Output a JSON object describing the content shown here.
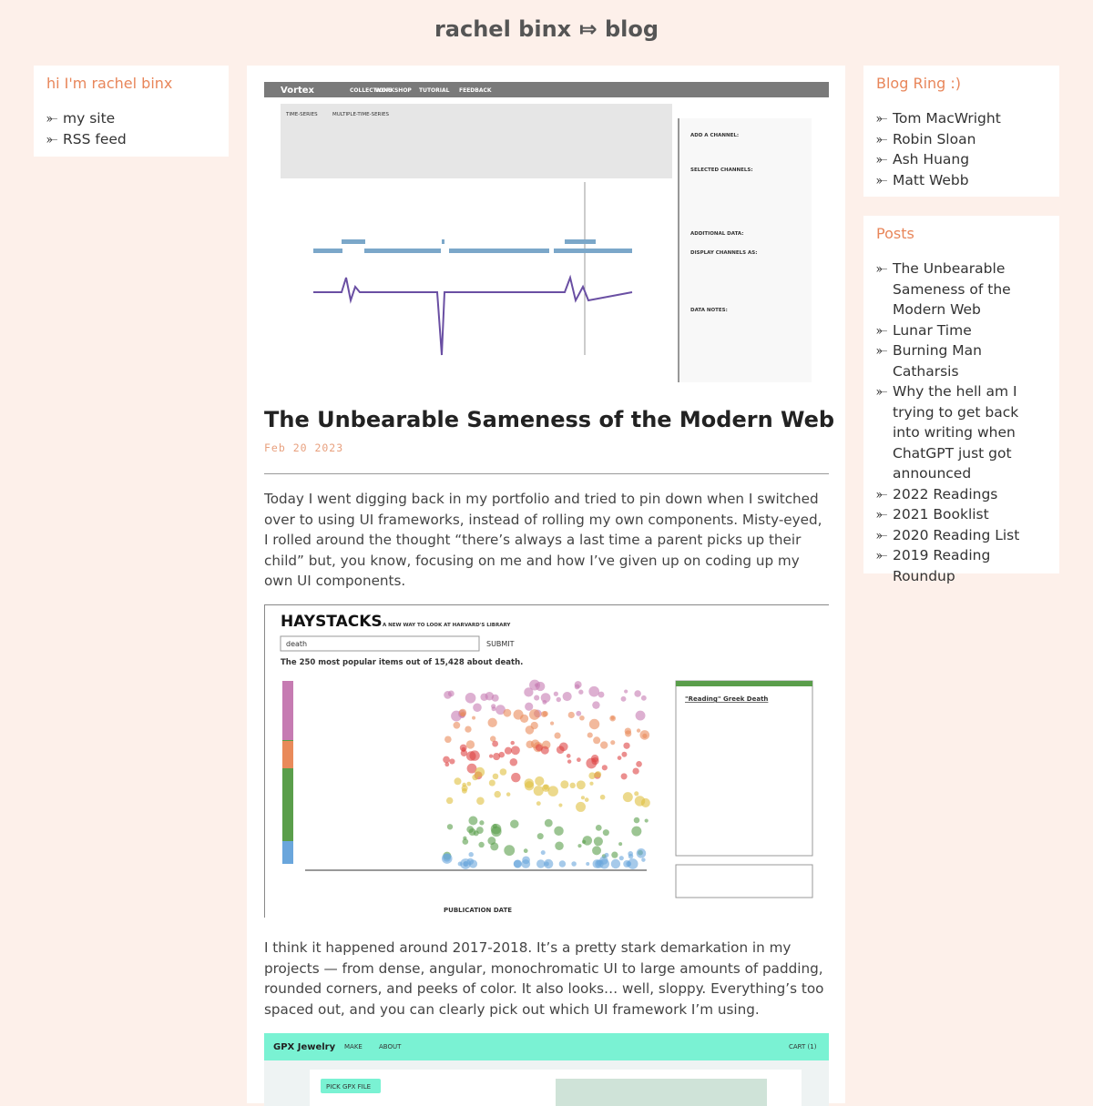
{
  "header": {
    "title": "rachel binx ⤇ blog"
  },
  "bullet": "⤜",
  "sidebar_left": {
    "title": "hi I'm rachel binx",
    "links": [
      "my site",
      "RSS feed"
    ]
  },
  "blog_ring": {
    "title": "Blog Ring :)",
    "links": [
      "Tom MacWright",
      "Robin Sloan",
      "Ash Huang",
      "Matt Webb"
    ]
  },
  "posts": {
    "title": "Posts",
    "links": [
      "The Unbearable Sameness of the Modern Web",
      "Lunar Time",
      "Burning Man Catharsis",
      "Why the hell am I trying to get back into writing when ChatGPT just got announced",
      "2022 Readings",
      "2021 Booklist",
      "2020 Reading List",
      "2019 Reading Roundup"
    ]
  },
  "article": {
    "title": "The Unbearable Sameness of the Modern Web",
    "date": "Feb 20 2023",
    "paragraphs": [
      "Today I went digging back in my portfolio and tried to pin down when I switched over to using UI frameworks, instead of rolling my own components. Misty-eyed, I rolled around the thought “there’s always a last time a parent picks up their child” but, you know, focusing on me and how I’ve given up on coding up my own UI components.",
      "I think it happened around 2017-2018. It’s a pretty stark demarkation in my projects — from dense, angular, monochromatic UI to large amounts of padding, rounded corners, and peeks of color. It also looks… well, sloppy. Everything’s too spaced out, and you can clearly pick out which UI framework I’m using."
    ],
    "images": [
      {
        "brand": "Vortex",
        "nav": [
          "COLLECTIONS",
          "WORKSHOP",
          "TUTORIAL",
          "FEEDBACK"
        ],
        "tabs": [
          "TIME-SERIES",
          "MULTIPLE-TIME-SERIES"
        ],
        "panel": [
          "ADD A CHANNEL:",
          "SELECTED CHANNELS:",
          "ADDITIONAL DATA:",
          "DISPLAY CHANNELS AS:",
          "DATA NOTES:"
        ]
      },
      {
        "brand": "HAYSTACKS",
        "tagline": "A NEW WAY TO LOOK AT HARVARD'S LIBRARY",
        "search": "death",
        "button": "SUBMIT",
        "summary": "The 250 most popular items out of 15,428 about death.",
        "axis_title": "PUBLICATION DATE",
        "side_title": "\"Reading\" Greek Death"
      },
      {
        "brand": "GPX Jewelry",
        "nav": [
          "MAKE",
          "ABOUT"
        ],
        "cart": "CART (1)",
        "button": "PICK GPX FILE"
      }
    ]
  }
}
